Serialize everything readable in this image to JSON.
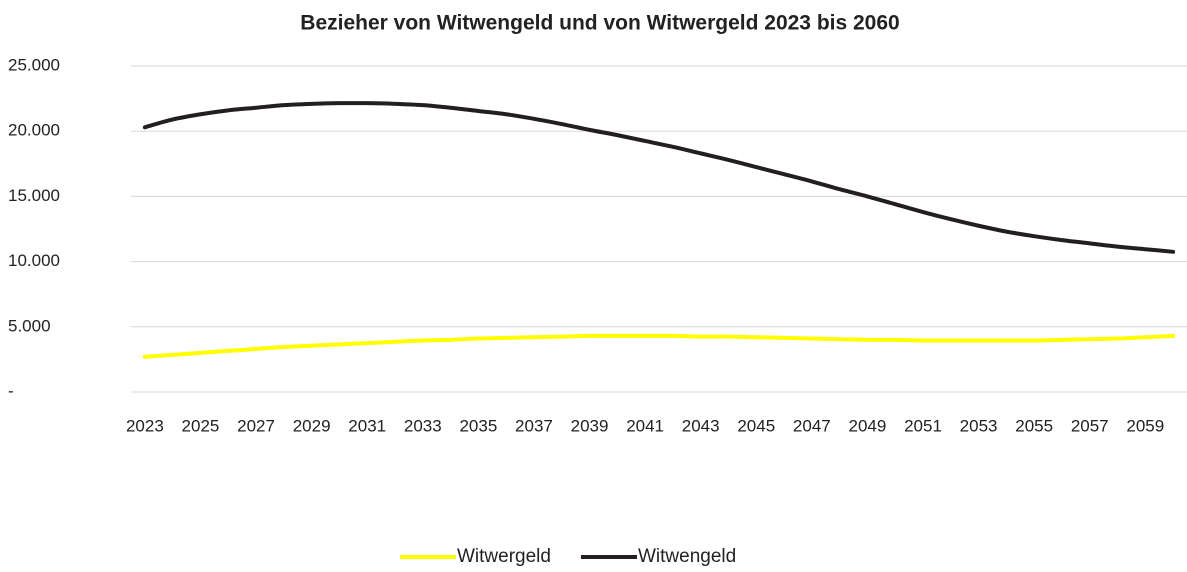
{
  "chart_data": {
    "type": "line",
    "title": "Bezieher von Witwengeld und von Witwergeld 2023 bis 2060",
    "categories": [
      "2023",
      null,
      "2025",
      null,
      "2027",
      null,
      "2029",
      null,
      "2031",
      null,
      "2033",
      null,
      "2035",
      null,
      "2037",
      null,
      "2039",
      null,
      "2041",
      null,
      "2043",
      null,
      "2045",
      null,
      "2047",
      null,
      "2049",
      null,
      "2051",
      null,
      "2053",
      null,
      "2055",
      null,
      "2057",
      null,
      "2059",
      null
    ],
    "series": [
      {
        "name": "Witwergeld",
        "color": "#ffff00",
        "values": [
          2700,
          2850,
          3000,
          3150,
          3300,
          3450,
          3550,
          3650,
          3750,
          3850,
          3950,
          4000,
          4100,
          4150,
          4200,
          4250,
          4300,
          4300,
          4300,
          4300,
          4250,
          4250,
          4200,
          4150,
          4100,
          4050,
          4000,
          4000,
          3950,
          3950,
          3950,
          3950,
          3950,
          4000,
          4050,
          4100,
          4200,
          4300
        ]
      },
      {
        "name": "Witwengeld",
        "color": "#231f1e",
        "values": [
          20300,
          20900,
          21300,
          21600,
          21800,
          22000,
          22100,
          22150,
          22150,
          22100,
          22000,
          21800,
          21550,
          21300,
          20950,
          20550,
          20100,
          19700,
          19250,
          18800,
          18300,
          17800,
          17250,
          16700,
          16150,
          15550,
          15000,
          14400,
          13800,
          13250,
          12750,
          12300,
          11950,
          11650,
          11400,
          11150,
          10950,
          10750
        ]
      }
    ],
    "ylim": [
      0,
      25000
    ],
    "yticks": [
      {
        "value": 0,
        "label": "-"
      },
      {
        "value": 5000,
        "label": "5.000"
      },
      {
        "value": 10000,
        "label": "10.000"
      },
      {
        "value": 15000,
        "label": "15.000"
      },
      {
        "value": 20000,
        "label": "20.000"
      },
      {
        "value": 25000,
        "label": "25.000"
      }
    ],
    "grid": true,
    "legend": "bottom"
  }
}
